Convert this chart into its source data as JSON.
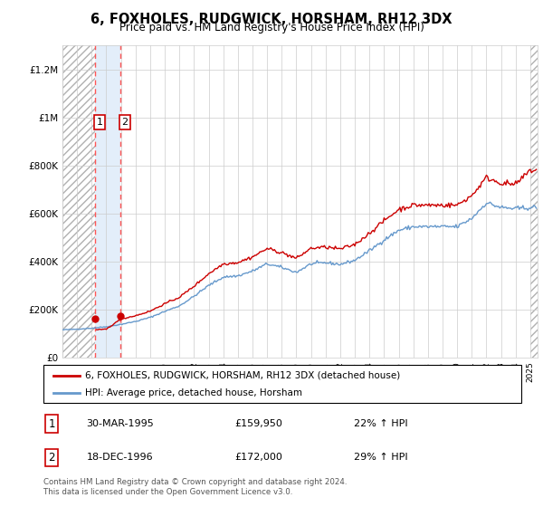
{
  "title": "6, FOXHOLES, RUDGWICK, HORSHAM, RH12 3DX",
  "subtitle": "Price paid vs. HM Land Registry's House Price Index (HPI)",
  "legend_line1": "6, FOXHOLES, RUDGWICK, HORSHAM, RH12 3DX (detached house)",
  "legend_line2": "HPI: Average price, detached house, Horsham",
  "footer": "Contains HM Land Registry data © Crown copyright and database right 2024.\nThis data is licensed under the Open Government Licence v3.0.",
  "transaction1_date": "30-MAR-1995",
  "transaction1_price": "£159,950",
  "transaction1_hpi": "22% ↑ HPI",
  "transaction2_date": "18-DEC-1996",
  "transaction2_price": "£172,000",
  "transaction2_hpi": "29% ↑ HPI",
  "property_color": "#cc0000",
  "hpi_color": "#6699cc",
  "vline_color": "#ff5555",
  "ylim": [
    0,
    1300000
  ],
  "xlim_start": 1993.0,
  "xlim_end": 2025.5,
  "transaction1_x": 1995.25,
  "transaction2_x": 1996.97,
  "transaction1_y": 159950,
  "transaction2_y": 172000
}
